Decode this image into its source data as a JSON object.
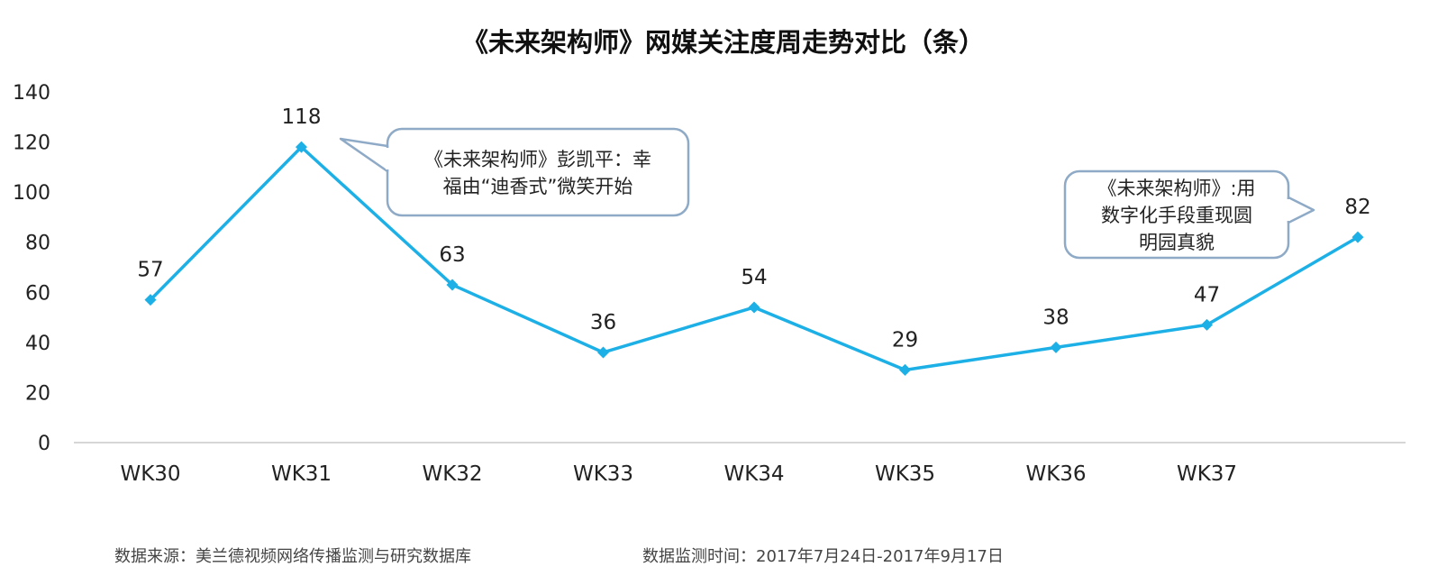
{
  "chart_data": {
    "type": "line",
    "title": "《未来架构师》网媒关注度周走势对比（条）",
    "categories": [
      "WK30",
      "WK31",
      "WK32",
      "WK33",
      "WK34",
      "WK35",
      "WK36",
      "WK37",
      ""
    ],
    "values": [
      57,
      118,
      63,
      36,
      54,
      29,
      38,
      47,
      82
    ],
    "ylim": [
      0,
      140
    ],
    "yticks": [
      0,
      20,
      40,
      60,
      80,
      100,
      120,
      140
    ],
    "grid": false,
    "line_color": "#1cb0e6",
    "callouts": [
      {
        "point": 1,
        "lines": [
          "《未来架构师》彭凯平：幸",
          "福由“迪香式”微笑开始"
        ]
      },
      {
        "point": 8,
        "lines": [
          "《未来架构师》:用",
          "数字化手段重现圆",
          "明园真貌"
        ]
      }
    ]
  },
  "footer": {
    "source": "数据来源：美兰德视频网络传播监测与研究数据库",
    "period": "数据监测时间：2017年7月24日-2017年9月17日"
  }
}
